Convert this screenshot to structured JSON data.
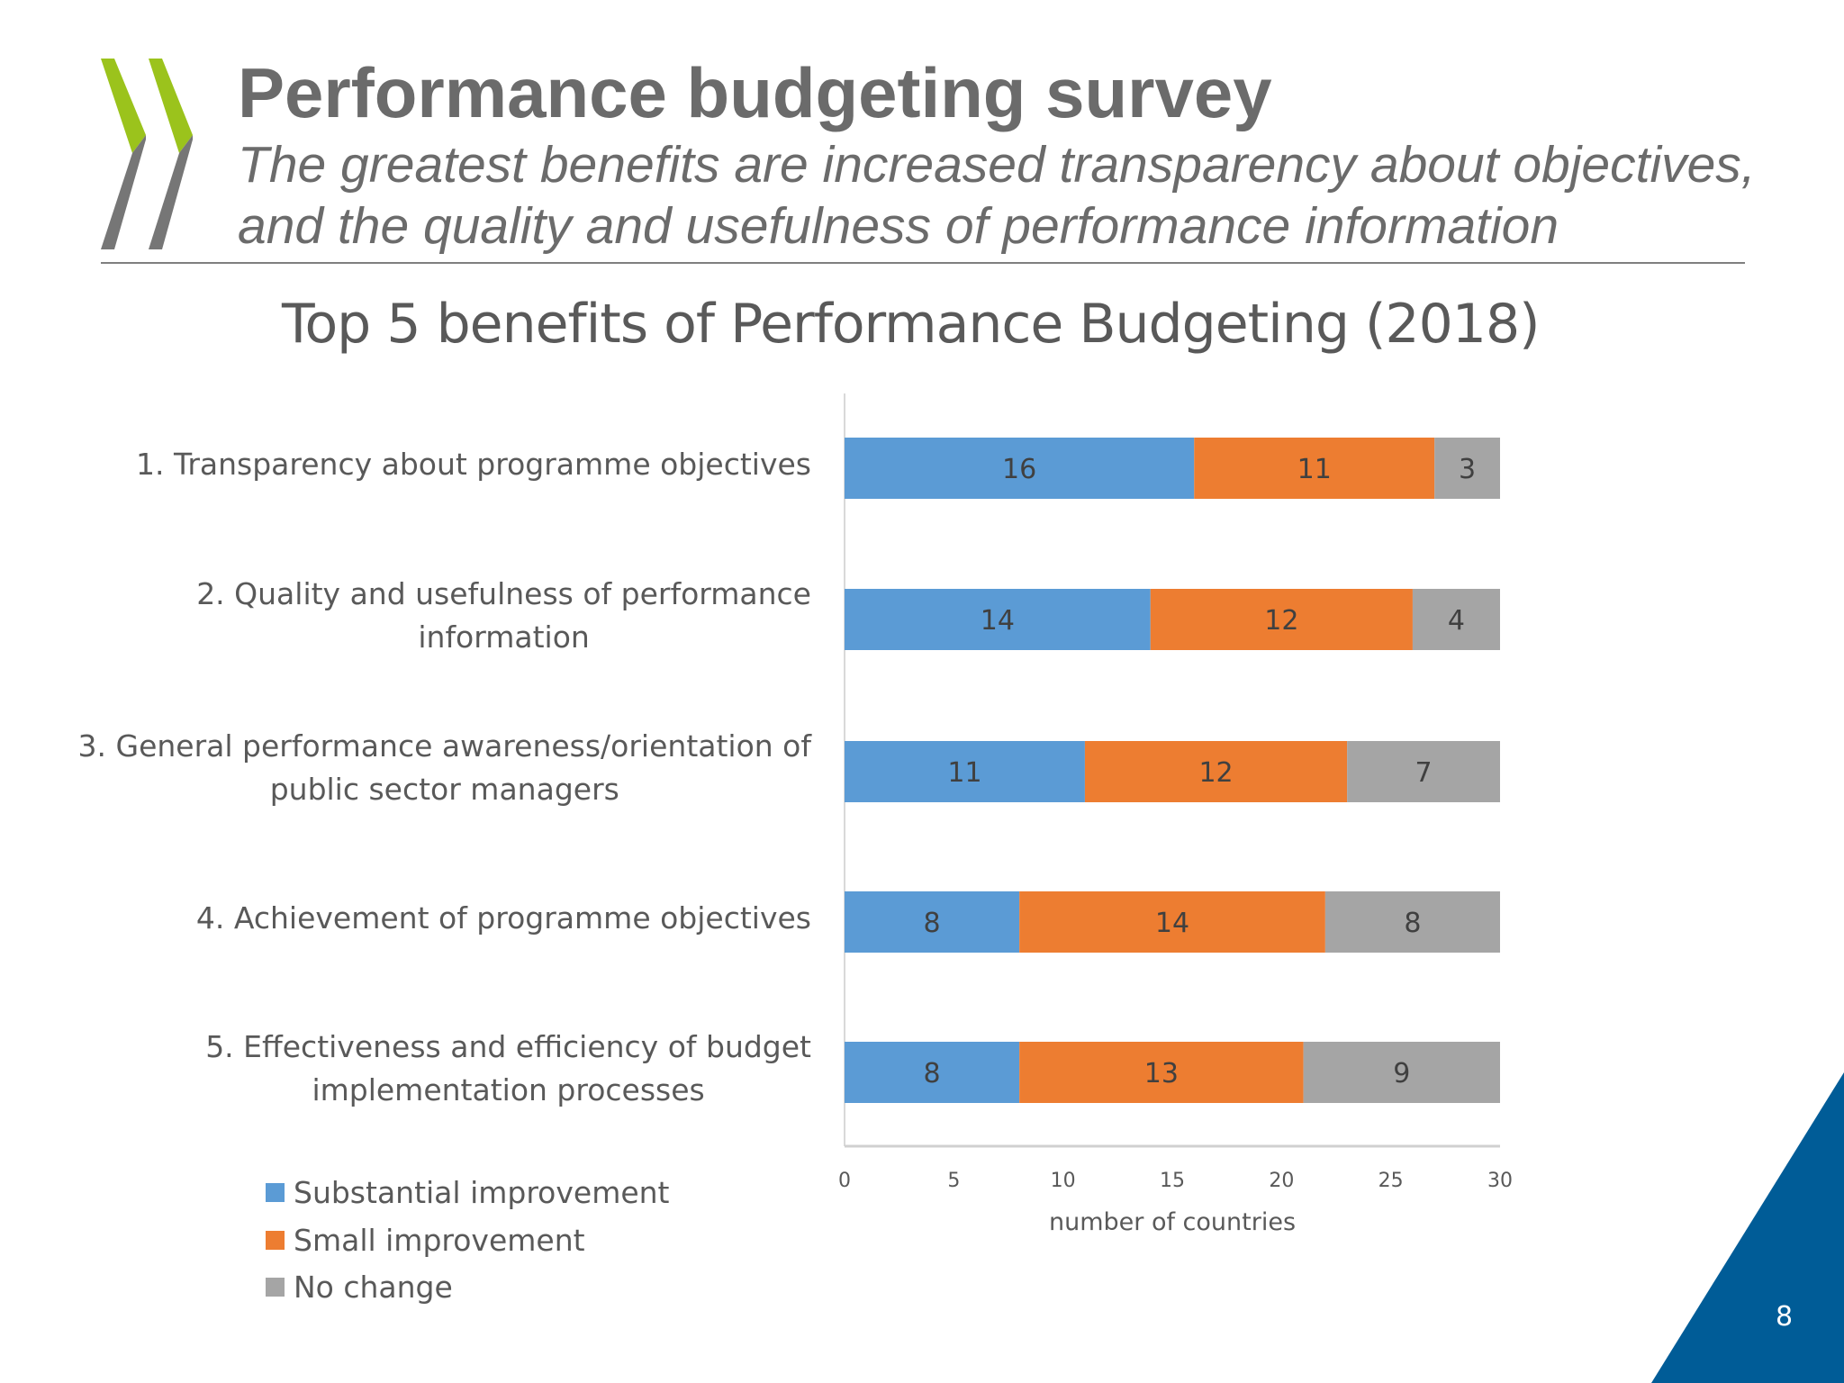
{
  "header": {
    "title": "Performance budgeting survey",
    "subtitle_line1": "The greatest benefits are increased transparency about objectives,",
    "subtitle_line2": "and the quality and usefulness of performance information"
  },
  "page_number": "8",
  "colors": {
    "substantial": "#5B9BD5",
    "small": "#ED7D31",
    "none": "#A5A5A5",
    "logo_green": "#9BC31C",
    "logo_gray": "#767676",
    "accent_blue": "#005C97"
  },
  "chart_data": {
    "type": "bar",
    "orientation": "horizontal",
    "stacked": true,
    "title": "Top 5 benefits of Performance Budgeting (2018)",
    "xlabel": "number of countries",
    "ylabel": "",
    "xlim": [
      0,
      30
    ],
    "xticks": [
      "0",
      "5",
      "10",
      "15",
      "20",
      "25",
      "30"
    ],
    "grid": false,
    "legend_placement": "bottom-left",
    "categories": [
      [
        "1. Transparency about programme objectives"
      ],
      [
        "2. Quality and usefulness of performance",
        "information"
      ],
      [
        "3. General performance awareness/orientation of",
        "public sector managers"
      ],
      [
        "4. Achievement of programme objectives"
      ],
      [
        "5. Effectiveness and efficiency of budget",
        "implementation processes"
      ]
    ],
    "series": [
      {
        "name": "Substantial improvement",
        "color": "#5B9BD5",
        "values": [
          16,
          14,
          11,
          8,
          8
        ]
      },
      {
        "name": "Small improvement",
        "color": "#ED7D31",
        "values": [
          11,
          12,
          12,
          14,
          13
        ]
      },
      {
        "name": "No change",
        "color": "#A5A5A5",
        "values": [
          3,
          4,
          7,
          8,
          9
        ]
      }
    ]
  }
}
